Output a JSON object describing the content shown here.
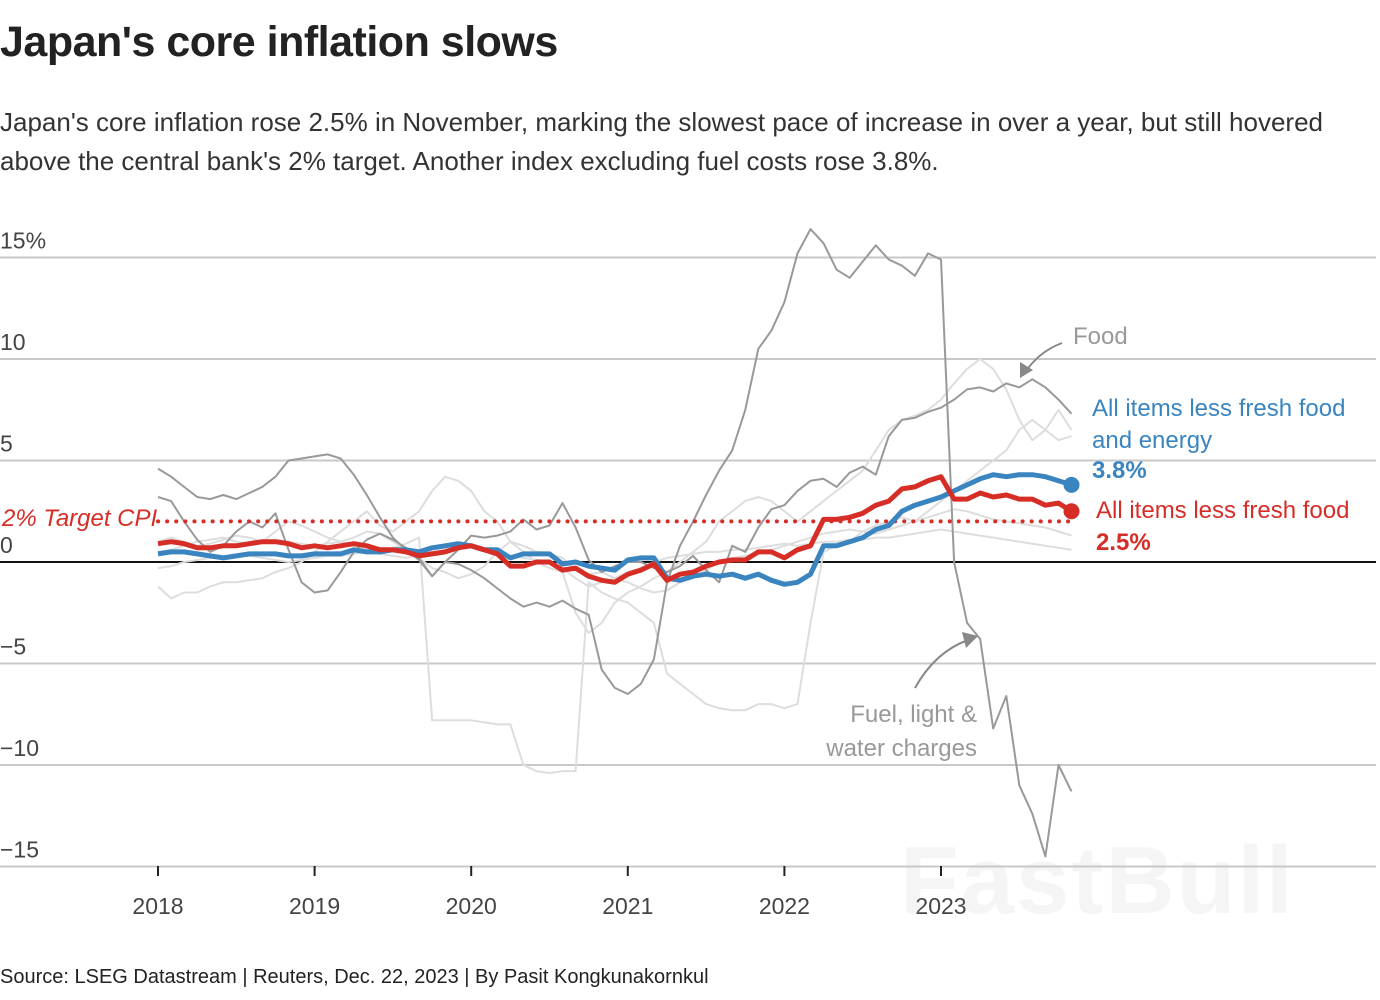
{
  "header": {
    "title": "Japan's core inflation slows",
    "subtitle": "Japan's core inflation rose 2.5% in November, marking the slowest pace of increase in over a year, but still hovered above the central bank's 2% target. Another index excluding fuel costs rose 3.8%."
  },
  "footer": {
    "source": "Source: LSEG Datastream | Reuters, Dec. 22, 2023 | By Pasit Kongkunakornkul"
  },
  "watermark": "FastBull",
  "chart_data": {
    "type": "line",
    "title": "Japan's core inflation slows",
    "xlabel": "",
    "ylabel": "",
    "ylim": [
      -15,
      15
    ],
    "x_start": "2018-01",
    "x_end": "2023-11",
    "frequency": "monthly",
    "x_ticks": [
      "2018",
      "2019",
      "2020",
      "2021",
      "2022",
      "2023"
    ],
    "y_ticks": [
      {
        "value": 15,
        "label": "15%"
      },
      {
        "value": 10,
        "label": "10"
      },
      {
        "value": 5,
        "label": "5"
      },
      {
        "value": 0,
        "label": "0"
      },
      {
        "value": -5,
        "label": "−5"
      },
      {
        "value": -10,
        "label": "−10"
      },
      {
        "value": -15,
        "label": "−15"
      }
    ],
    "grid": true,
    "reference_line": {
      "value": 2,
      "label": "2% Target CPI",
      "color": "#d62d27"
    },
    "series": [
      {
        "name": "All items less fresh food and energy",
        "end_label": "3.8%",
        "color": "#3a85c0",
        "emphasis": true,
        "values": [
          0.4,
          0.5,
          0.5,
          0.4,
          0.3,
          0.2,
          0.3,
          0.4,
          0.4,
          0.4,
          0.3,
          0.3,
          0.4,
          0.4,
          0.4,
          0.6,
          0.5,
          0.5,
          0.6,
          0.6,
          0.5,
          0.7,
          0.8,
          0.9,
          0.8,
          0.6,
          0.6,
          0.2,
          0.4,
          0.4,
          0.4,
          -0.1,
          0.0,
          -0.2,
          -0.3,
          -0.4,
          0.1,
          0.2,
          0.2,
          -0.8,
          -0.9,
          -0.7,
          -0.6,
          -0.7,
          -0.6,
          -0.8,
          -0.6,
          -0.9,
          -1.1,
          -1.0,
          -0.6,
          0.8,
          0.8,
          1.0,
          1.2,
          1.6,
          1.8,
          2.5,
          2.8,
          3.0,
          3.2,
          3.5,
          3.8,
          4.1,
          4.3,
          4.2,
          4.3,
          4.3,
          4.2,
          4.0,
          3.8
        ]
      },
      {
        "name": "All items less fresh food",
        "end_label": "2.5%",
        "color": "#d62d27",
        "emphasis": true,
        "values": [
          0.9,
          1.0,
          0.9,
          0.7,
          0.7,
          0.8,
          0.8,
          0.9,
          1.0,
          1.0,
          0.9,
          0.7,
          0.8,
          0.7,
          0.8,
          0.9,
          0.8,
          0.6,
          0.6,
          0.5,
          0.3,
          0.4,
          0.5,
          0.7,
          0.8,
          0.6,
          0.4,
          -0.2,
          -0.2,
          0.0,
          0.0,
          -0.4,
          -0.3,
          -0.7,
          -0.9,
          -1.0,
          -0.6,
          -0.4,
          -0.1,
          -0.9,
          -0.6,
          -0.5,
          -0.2,
          0.0,
          0.1,
          0.1,
          0.5,
          0.5,
          0.2,
          0.6,
          0.8,
          2.1,
          2.1,
          2.2,
          2.4,
          2.8,
          3.0,
          3.6,
          3.7,
          4.0,
          4.2,
          3.1,
          3.1,
          3.4,
          3.2,
          3.3,
          3.1,
          3.1,
          2.8,
          2.9,
          2.5
        ]
      },
      {
        "name": "Food",
        "color": "#999999",
        "values": [
          3.2,
          3.0,
          2.0,
          1.1,
          0.5,
          0.8,
          1.5,
          2.0,
          1.7,
          2.4,
          0.6,
          -1.0,
          -1.5,
          -1.4,
          -0.5,
          0.5,
          1.1,
          1.4,
          1.1,
          0.7,
          0.2,
          -0.7,
          0.0,
          0.6,
          1.3,
          1.2,
          1.3,
          1.5,
          2.1,
          1.6,
          1.8,
          2.9,
          1.7,
          0.1,
          -0.5,
          -0.2,
          0.0,
          0.0,
          -0.3,
          -0.5,
          -0.2,
          0.3,
          -0.4,
          -1.0,
          0.8,
          0.5,
          1.7,
          2.6,
          2.8,
          3.5,
          4.0,
          4.1,
          3.7,
          4.4,
          4.7,
          4.3,
          6.2,
          7.0,
          7.1,
          7.4,
          7.6,
          8.0,
          8.5,
          8.6,
          8.4,
          8.8,
          8.6,
          9.0,
          8.6,
          8.0,
          7.3
        ]
      },
      {
        "name": "Fuel, light & water charges",
        "color": "#999999",
        "values": [
          4.6,
          4.2,
          3.7,
          3.2,
          3.1,
          3.3,
          3.1,
          3.4,
          3.7,
          4.2,
          5.0,
          5.1,
          5.2,
          5.3,
          5.1,
          4.3,
          3.3,
          2.2,
          1.2,
          0.6,
          0.1,
          -0.7,
          0.0,
          -0.1,
          -0.4,
          -0.8,
          -1.3,
          -1.8,
          -2.2,
          -2.0,
          -2.2,
          -1.9,
          -2.3,
          -2.6,
          -5.3,
          -6.2,
          -6.5,
          -6.0,
          -4.8,
          -1.0,
          0.8,
          2.0,
          3.3,
          4.5,
          5.5,
          7.5,
          10.5,
          11.4,
          12.8,
          15.2,
          16.4,
          15.7,
          14.4,
          14.0,
          14.8,
          15.6,
          14.9,
          14.6,
          14.1,
          15.2,
          14.9,
          0.0,
          -3.0,
          -3.8,
          -8.2,
          -6.6,
          -11.0,
          -12.4,
          -14.5,
          -10.0,
          -11.3
        ]
      },
      {
        "color": "#dddddd",
        "values": [
          1.0,
          1.2,
          1.0,
          0.8,
          0.9,
          1.1,
          1.3,
          1.2,
          1.0,
          1.5,
          2.0,
          1.8,
          1.5,
          1.2,
          1.0,
          0.8,
          0.6,
          0.5,
          0.7,
          0.9,
          1.2,
          -7.8,
          -7.8,
          -7.8,
          -7.8,
          -7.9,
          -8.0,
          -8.0,
          -10.0,
          -10.3,
          -10.4,
          -10.3,
          -10.3,
          -1.0,
          -1.5,
          -1.8,
          -2.0,
          -2.5,
          -3.0,
          -5.5,
          -6.0,
          -6.5,
          -7.0,
          -7.2,
          -7.3,
          -7.3,
          -7.0,
          -7.0,
          -7.2,
          -7.0,
          -3.0,
          0.5,
          0.8,
          1.0,
          1.5,
          1.8,
          2.0,
          2.2,
          2.0,
          2.5,
          3.0,
          3.5,
          4.0,
          4.5,
          5.0,
          5.5,
          6.5,
          7.0,
          6.5,
          6.0,
          6.2
        ]
      },
      {
        "color": "#dddddd",
        "values": [
          -1.2,
          -1.8,
          -1.5,
          -1.5,
          -1.2,
          -1.0,
          -1.0,
          -0.9,
          -0.8,
          -0.5,
          -0.3,
          0.0,
          0.5,
          1.0,
          1.5,
          2.0,
          2.5,
          1.8,
          1.5,
          2.0,
          2.5,
          3.5,
          4.2,
          4.0,
          3.5,
          2.5,
          2.0,
          1.0,
          0.5,
          0.0,
          -0.3,
          -0.5,
          -2.5,
          -3.5,
          -3.0,
          -2.0,
          -1.5,
          -1.2,
          -0.8,
          -0.5,
          0.0,
          0.5,
          1.0,
          2.0,
          2.5,
          3.0,
          3.2,
          3.0,
          2.5,
          2.0,
          2.5,
          3.0,
          3.5,
          4.0,
          4.5,
          5.5,
          6.5,
          7.0,
          7.2,
          7.5,
          8.0,
          8.8,
          9.5,
          10.0,
          9.5,
          8.5,
          7.0,
          6.0,
          6.5,
          7.5,
          6.5
        ]
      },
      {
        "color": "#dddddd",
        "values": [
          0.5,
          0.6,
          0.8,
          1.0,
          1.1,
          1.2,
          1.0,
          0.9,
          1.0,
          1.1,
          1.0,
          0.9,
          0.8,
          0.9,
          1.0,
          1.2,
          1.5,
          1.4,
          1.0,
          0.6,
          0.2,
          -0.3,
          -0.5,
          -0.8,
          -0.6,
          -0.2,
          0.5,
          1.0,
          0.8,
          0.5,
          0.4,
          0.2,
          -0.4,
          -0.6,
          -0.5,
          -0.8,
          -1.0,
          -1.3,
          -1.5,
          -1.4,
          -1.0,
          -0.8,
          -0.4,
          0.0,
          0.2,
          0.3,
          0.5,
          0.6,
          0.8,
          1.0,
          1.2,
          1.4,
          1.5,
          1.6,
          1.5,
          1.4,
          1.6,
          1.8,
          2.0,
          2.2,
          2.4,
          2.6,
          2.5,
          2.3,
          2.1,
          2.0,
          1.9,
          1.8,
          1.7,
          1.5,
          1.3
        ]
      },
      {
        "color": "#dddddd",
        "values": [
          -0.3,
          -0.2,
          0.0,
          0.1,
          0.2,
          0.2,
          0.3,
          0.3,
          0.2,
          0.1,
          0.0,
          0.1,
          0.2,
          0.3,
          0.3,
          0.4,
          0.5,
          0.4,
          0.3,
          0.2,
          0.3,
          0.6,
          0.7,
          0.8,
          0.7,
          0.6,
          0.5,
          0.3,
          0.2,
          0.1,
          0.0,
          -0.3,
          -0.8,
          -1.2,
          -1.0,
          -0.8,
          -0.5,
          -0.3,
          0.0,
          0.2,
          0.3,
          0.4,
          0.5,
          0.5,
          0.6,
          0.6,
          0.7,
          0.8,
          0.9,
          0.8,
          0.9,
          1.0,
          1.0,
          1.1,
          1.1,
          1.2,
          1.2,
          1.3,
          1.4,
          1.5,
          1.6,
          1.5,
          1.4,
          1.3,
          1.2,
          1.1,
          1.0,
          0.9,
          0.8,
          0.7,
          0.6
        ]
      }
    ],
    "annotations": {
      "food": "Food",
      "fuel_line1": "Fuel, light &",
      "fuel_line2": "water charges",
      "blue_line1": "All items less fresh food",
      "blue_line2": "and energy",
      "red_line1": "All items less fresh food"
    }
  }
}
